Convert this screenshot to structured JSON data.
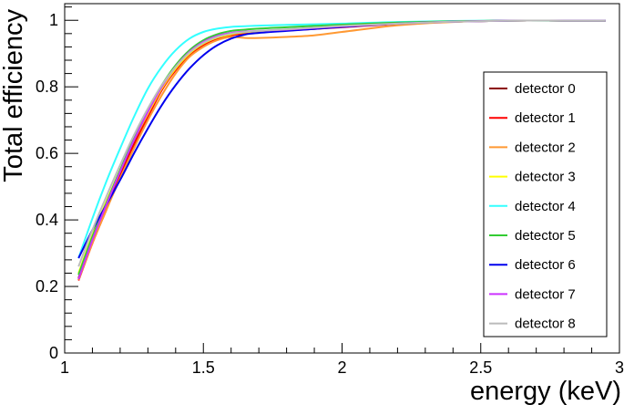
{
  "chart_data": {
    "type": "line",
    "title": "",
    "xlabel": "energy (keV)",
    "ylabel": "Total efficiency",
    "xlim": [
      1,
      3
    ],
    "ylim": [
      0,
      1.05
    ],
    "x_ticks": [
      "1",
      "1.5",
      "2",
      "2.5",
      "3"
    ],
    "y_ticks": [
      "0",
      "0.2",
      "0.4",
      "0.6",
      "0.8",
      "1"
    ],
    "grid": false,
    "legend_position": "right",
    "x": [
      1.05,
      1.1,
      1.15,
      1.2,
      1.25,
      1.3,
      1.35,
      1.4,
      1.45,
      1.5,
      1.55,
      1.6,
      1.65,
      1.7,
      1.8,
      1.9,
      2.0,
      2.2,
      2.4,
      2.6,
      2.8,
      2.95
    ],
    "series": [
      {
        "name": "detector 0",
        "color": "#8b0000",
        "values": [
          0.225,
          0.34,
          0.44,
          0.54,
          0.635,
          0.72,
          0.795,
          0.855,
          0.9,
          0.93,
          0.948,
          0.957,
          0.962,
          0.965,
          0.97,
          0.975,
          0.98,
          0.99,
          0.996,
          0.999,
          0.999,
          0.999
        ]
      },
      {
        "name": "detector 1",
        "color": "#ff0000",
        "values": [
          0.218,
          0.33,
          0.43,
          0.53,
          0.625,
          0.71,
          0.79,
          0.85,
          0.895,
          0.925,
          0.944,
          0.955,
          0.96,
          0.964,
          0.969,
          0.974,
          0.979,
          0.989,
          0.996,
          0.999,
          0.999,
          0.999
        ]
      },
      {
        "name": "detector 2",
        "color": "#ff9933",
        "values": [
          0.22,
          0.33,
          0.43,
          0.525,
          0.615,
          0.7,
          0.775,
          0.84,
          0.89,
          0.92,
          0.94,
          0.95,
          0.947,
          0.947,
          0.95,
          0.955,
          0.965,
          0.985,
          0.995,
          0.999,
          0.999,
          0.999
        ]
      },
      {
        "name": "detector 3",
        "color": "#ffff00",
        "values": [
          0.24,
          0.355,
          0.455,
          0.55,
          0.64,
          0.72,
          0.795,
          0.855,
          0.9,
          0.93,
          0.948,
          0.958,
          0.964,
          0.967,
          0.972,
          0.977,
          0.982,
          0.99,
          0.996,
          0.999,
          0.999,
          0.999
        ]
      },
      {
        "name": "detector 4",
        "color": "#33ffff",
        "values": [
          0.285,
          0.405,
          0.515,
          0.615,
          0.71,
          0.795,
          0.86,
          0.91,
          0.945,
          0.965,
          0.975,
          0.98,
          0.982,
          0.984,
          0.986,
          0.988,
          0.99,
          0.995,
          0.998,
          0.999,
          0.999,
          0.999
        ]
      },
      {
        "name": "detector 5",
        "color": "#33cc33",
        "values": [
          0.235,
          0.35,
          0.45,
          0.55,
          0.645,
          0.73,
          0.805,
          0.865,
          0.91,
          0.94,
          0.958,
          0.968,
          0.972,
          0.975,
          0.979,
          0.983,
          0.987,
          0.993,
          0.997,
          0.999,
          0.999,
          0.999
        ]
      },
      {
        "name": "detector 6",
        "color": "#0000ee",
        "values": [
          0.285,
          0.37,
          0.445,
          0.52,
          0.6,
          0.675,
          0.745,
          0.805,
          0.855,
          0.895,
          0.925,
          0.945,
          0.957,
          0.962,
          0.968,
          0.974,
          0.98,
          0.99,
          0.996,
          0.999,
          0.999,
          0.999
        ]
      },
      {
        "name": "detector 7",
        "color": "#cc33ff",
        "values": [
          0.222,
          0.34,
          0.445,
          0.545,
          0.64,
          0.725,
          0.8,
          0.86,
          0.905,
          0.935,
          0.953,
          0.962,
          0.966,
          0.968,
          0.972,
          0.977,
          0.982,
          0.99,
          0.996,
          0.999,
          0.999,
          0.999
        ]
      },
      {
        "name": "detector 8",
        "color": "#bbbbbb",
        "values": [
          0.26,
          0.37,
          0.47,
          0.565,
          0.655,
          0.735,
          0.805,
          0.86,
          0.903,
          0.932,
          0.95,
          0.96,
          0.965,
          0.968,
          0.973,
          0.978,
          0.983,
          0.99,
          0.996,
          0.999,
          0.999,
          0.999
        ]
      }
    ]
  }
}
